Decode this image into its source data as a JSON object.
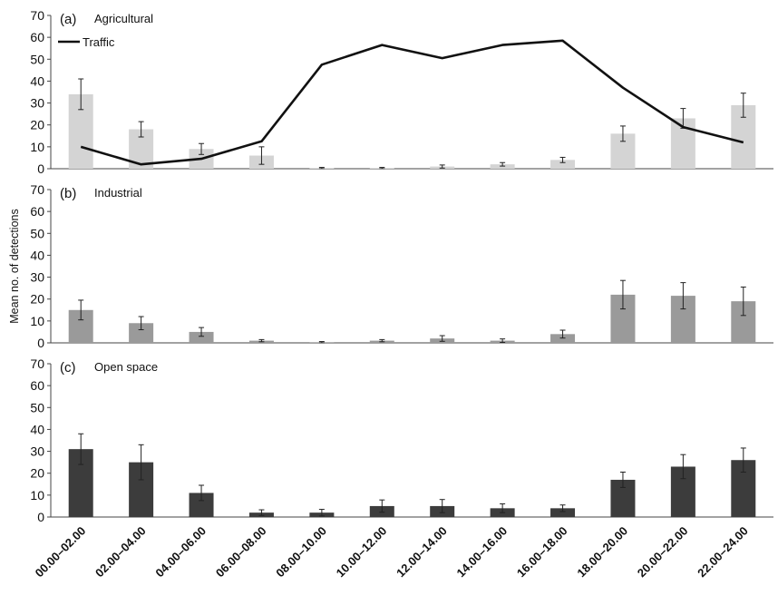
{
  "chart_data": [
    {
      "type": "bar",
      "panel_label": "(a)",
      "title": "Agricultural",
      "categories": [
        "00.00–02.00",
        "02.00–04.00",
        "04.00–06.00",
        "06.00–08.00",
        "08.00–10.00",
        "10.00–12.00",
        "12.00–14.00",
        "14.00–16.00",
        "16.00–18.00",
        "18.00–20.00",
        "20.00–22.00",
        "22.00–24.00"
      ],
      "series": [
        {
          "values": [
            34,
            18,
            9,
            6,
            0.3,
            0.3,
            1,
            2,
            4,
            16,
            23,
            29
          ],
          "errors": [
            7,
            3.5,
            2.5,
            4,
            0.3,
            0.3,
            0.7,
            0.8,
            1.2,
            3.5,
            4.5,
            5.5
          ],
          "color": "#d4d4d4"
        },
        {
          "name": "Traffic",
          "type": "line",
          "values": [
            10,
            2,
            4.5,
            12.5,
            47.5,
            56.5,
            50.5,
            56.5,
            58.5,
            37,
            19,
            12
          ],
          "color": "#111111"
        }
      ],
      "ylim": [
        0,
        70
      ],
      "yticks": [
        0,
        10,
        20,
        30,
        40,
        50,
        60,
        70
      ],
      "legend": "top-left"
    },
    {
      "type": "bar",
      "panel_label": "(b)",
      "title": "Industrial",
      "categories": [
        "00.00–02.00",
        "02.00–04.00",
        "04.00–06.00",
        "06.00–08.00",
        "08.00–10.00",
        "10.00–12.00",
        "12.00–14.00",
        "14.00–16.00",
        "16.00–18.00",
        "18.00–20.00",
        "20.00–22.00",
        "22.00–24.00"
      ],
      "series": [
        {
          "values": [
            15,
            9,
            5,
            1,
            0.3,
            1,
            2,
            1,
            4,
            22,
            21.5,
            19
          ],
          "errors": [
            4.5,
            3,
            2,
            0.5,
            0.3,
            0.5,
            1.3,
            0.8,
            1.8,
            6.5,
            6,
            6.5
          ],
          "color": "#9a9a9a"
        }
      ],
      "ylabel": "Mean no. of detections",
      "ylim": [
        0,
        70
      ],
      "yticks": [
        0,
        10,
        20,
        30,
        40,
        50,
        60,
        70
      ]
    },
    {
      "type": "bar",
      "panel_label": "(c)",
      "title": "Open space",
      "categories": [
        "00.00–02.00",
        "02.00–04.00",
        "04.00–06.00",
        "06.00–08.00",
        "08.00–10.00",
        "10.00–12.00",
        "12.00–14.00",
        "14.00–16.00",
        "16.00–18.00",
        "18.00–20.00",
        "20.00–22.00",
        "22.00–24.00"
      ],
      "series": [
        {
          "values": [
            31,
            25,
            11,
            2,
            2,
            5,
            5,
            4,
            4,
            17,
            23,
            26
          ],
          "errors": [
            7,
            8,
            3.5,
            1.3,
            1.5,
            2.8,
            3,
            2,
            1.5,
            3.5,
            5.5,
            5.5
          ],
          "color": "#3c3c3c"
        }
      ],
      "ylim": [
        0,
        70
      ],
      "yticks": [
        0,
        10,
        20,
        30,
        40,
        50,
        60,
        70
      ]
    }
  ]
}
